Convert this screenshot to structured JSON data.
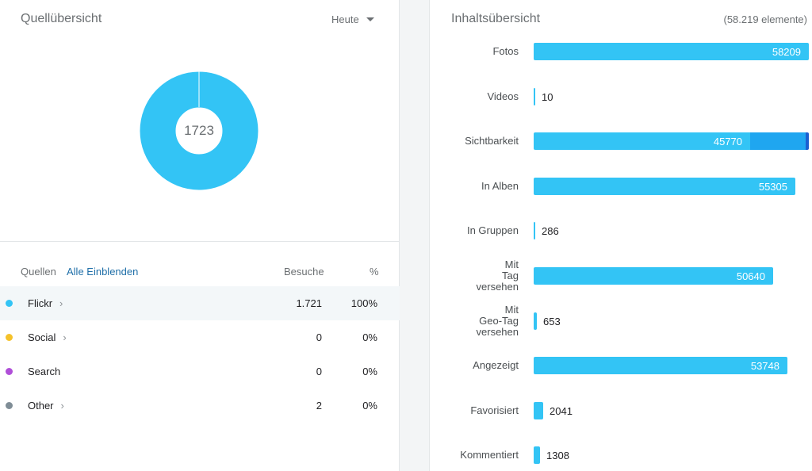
{
  "left": {
    "title": "Quellübersicht",
    "period": "Heute",
    "donut_total": "1723",
    "table": {
      "col_sources": "Quellen",
      "show_all": "Alle Einblenden",
      "col_visits": "Besuche",
      "col_pct": "%",
      "rows": [
        {
          "name": "Flickr",
          "visits": "1.721",
          "pct": "100%",
          "color": "#33c4f5"
        },
        {
          "name": "Social",
          "visits": "0",
          "pct": "0%",
          "color": "#f5c22a"
        },
        {
          "name": "Search",
          "visits": "0",
          "pct": "0%",
          "color": "#b04fd8"
        },
        {
          "name": "Other",
          "visits": "2",
          "pct": "0%",
          "color": "#7f8d96"
        }
      ]
    }
  },
  "right": {
    "title": "Inhaltsübersicht",
    "count": "(58.219 elemente)",
    "bars": [
      {
        "label": "Fotos",
        "value": "58209",
        "fraction": 1.0
      },
      {
        "label": "Videos",
        "value": "10",
        "fraction": 0.0002
      },
      {
        "label": "Sichtbarkeit",
        "value": "45770",
        "fraction": 0.786
      },
      {
        "label": "In Alben",
        "value": "55305",
        "fraction": 0.95
      },
      {
        "label": "In Gruppen",
        "value": "286",
        "fraction": 0.005
      },
      {
        "label": "Mit Tag versehen",
        "value": "50640",
        "fraction": 0.87
      },
      {
        "label": "Mit Geo-Tag versehen",
        "value": "653",
        "fraction": 0.011
      },
      {
        "label": "Angezeigt",
        "value": "53748",
        "fraction": 0.923
      },
      {
        "label": "Favorisiert",
        "value": "2041",
        "fraction": 0.035
      },
      {
        "label": "Kommentiert",
        "value": "1308",
        "fraction": 0.022
      }
    ]
  },
  "colors": {
    "accent": "#33c4f5",
    "accent_dark": "#1fa6f0",
    "link": "#1f6fa8"
  }
}
